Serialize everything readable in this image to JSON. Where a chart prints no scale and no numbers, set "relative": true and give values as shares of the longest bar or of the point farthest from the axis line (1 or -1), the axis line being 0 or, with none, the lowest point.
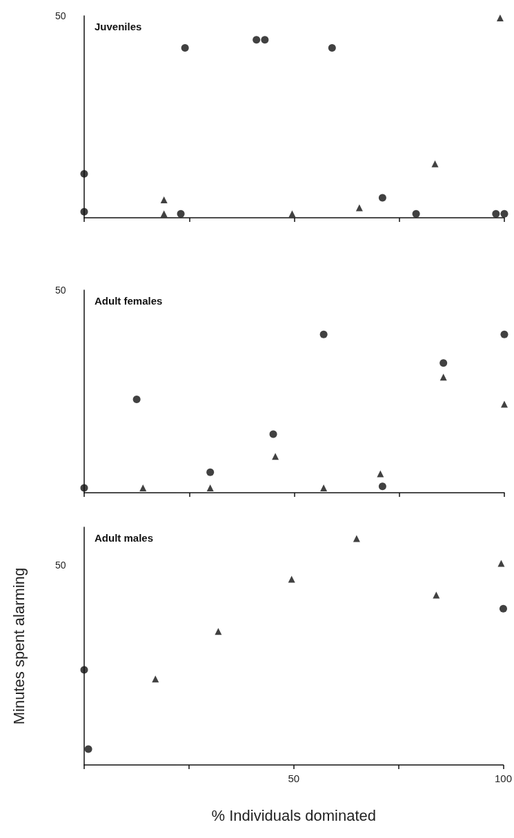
{
  "chart_data": [
    {
      "type": "scatter",
      "title": "Juveniles",
      "relative": true,
      "annotations": [
        "50"
      ],
      "xlim": [
        0,
        100
      ],
      "xticks": [
        0,
        {
          "value": 25,
          "label": null
        },
        50,
        {
          "value": 75,
          "label": null
        },
        100
      ],
      "tick_labels": false,
      "grid": false,
      "series": [
        {
          "color": "#111111",
          "marker": "circle",
          "x": [
            0,
            0,
            23,
            24,
            41,
            43,
            59,
            71,
            79,
            98,
            100
          ],
          "values": [
            0.22,
            0.03,
            0.02,
            0.85,
            0.89,
            0.89,
            0.85,
            0.1,
            0.02,
            0.02,
            0.02
          ]
        },
        {
          "color": "#111111",
          "marker": "triangle",
          "x": [
            19,
            19,
            49.5,
            65.5,
            83.5,
            99
          ],
          "values": [
            0.09,
            0.02,
            0.02,
            0.05,
            0.27,
            1
          ]
        }
      ]
    },
    {
      "type": "scatter",
      "title": "Adult females",
      "relative": true,
      "annotations": [
        "50"
      ],
      "xlim": [
        0,
        100
      ],
      "xticks": [
        0,
        {
          "value": 25,
          "label": null
        },
        50,
        {
          "value": 75,
          "label": null
        },
        100
      ],
      "tick_labels": false,
      "grid": false,
      "series": [
        {
          "color": "#111111",
          "marker": "circle",
          "x": [
            0,
            12.5,
            30,
            45,
            57,
            71,
            85.5,
            100
          ],
          "values": [
            0.03,
            0.59,
            0.13,
            0.37,
            1,
            0.04,
            0.82,
            1
          ]
        },
        {
          "color": "#111111",
          "marker": "triangle",
          "x": [
            14,
            30,
            45.5,
            57,
            70.5,
            85.5,
            100
          ],
          "values": [
            0.03,
            0.03,
            0.23,
            0.03,
            0.12,
            0.73,
            0.56
          ]
        }
      ]
    },
    {
      "type": "scatter",
      "title": "Adult males",
      "relative": true,
      "annotations": [
        "50"
      ],
      "xlabel": "% Individuals dominated",
      "ylabel": "Minutes spent alarming",
      "xlim": [
        0,
        100
      ],
      "xticks": [
        {
          "value": 0,
          "label": null
        },
        {
          "value": 25,
          "label": null
        },
        50,
        {
          "value": 75,
          "label": null
        },
        100
      ],
      "tick_labels": "x",
      "grid": false,
      "series": [
        {
          "color": "#111111",
          "marker": "circle",
          "x": [
            0,
            1,
            100
          ],
          "values": [
            0.42,
            0.07,
            0.69
          ]
        },
        {
          "color": "#111111",
          "marker": "triangle",
          "x": [
            17,
            32,
            49.5,
            65,
            84,
            99.5
          ],
          "values": [
            0.38,
            0.59,
            0.82,
            1,
            0.75,
            0.89
          ]
        }
      ]
    }
  ]
}
